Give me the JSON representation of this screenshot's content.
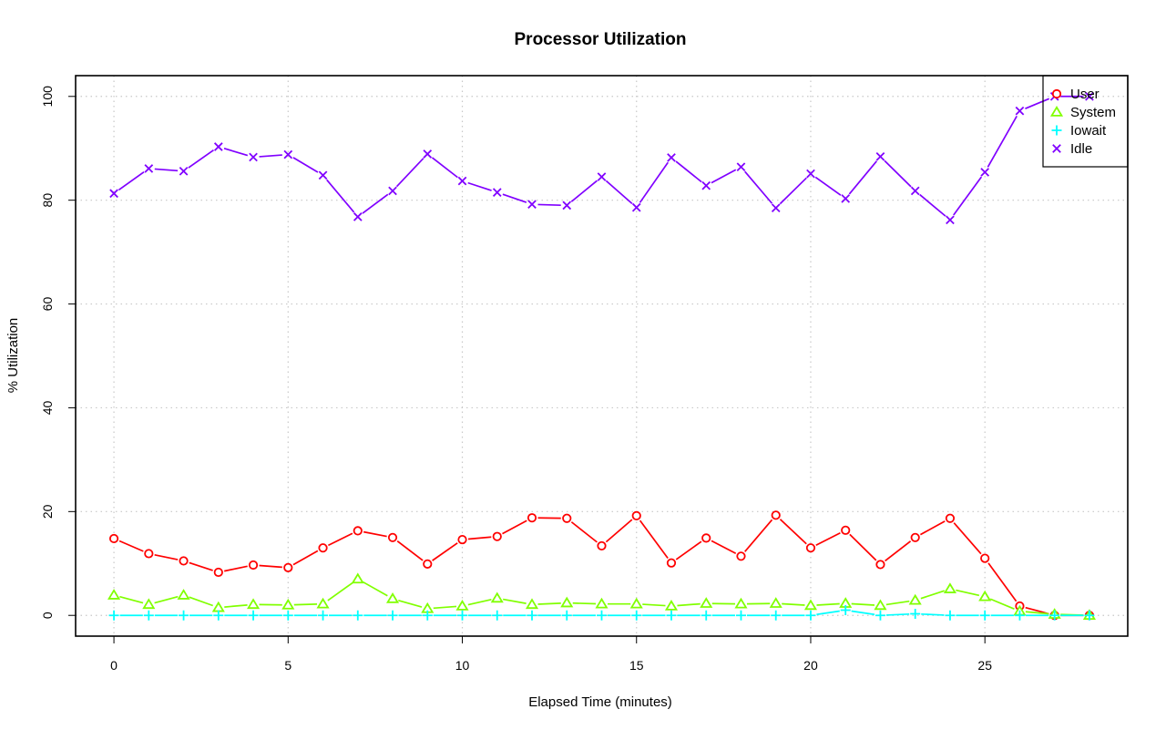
{
  "chart_data": {
    "type": "line",
    "title": "Processor Utilization",
    "xlabel": "Elapsed Time (minutes)",
    "ylabel": "% Utilization",
    "xlim": [
      -1.1,
      29.1
    ],
    "ylim": [
      -4,
      104
    ],
    "xticks": [
      0,
      5,
      10,
      15,
      20,
      25
    ],
    "yticks": [
      0,
      20,
      40,
      60,
      80,
      100
    ],
    "grid": true,
    "legend_position": "top-right",
    "x": [
      0,
      1,
      2,
      3,
      4,
      5,
      6,
      7,
      8,
      9,
      10,
      11,
      12,
      13,
      14,
      15,
      16,
      17,
      18,
      19,
      20,
      21,
      22,
      23,
      24,
      25,
      26,
      27,
      28
    ],
    "series": [
      {
        "name": "User",
        "color": "#ff0000",
        "marker": "circle",
        "values": [
          14.8,
          11.9,
          10.5,
          8.3,
          9.7,
          9.2,
          13.0,
          16.3,
          15.0,
          9.9,
          14.6,
          15.2,
          18.8,
          18.7,
          13.4,
          19.2,
          10.1,
          14.9,
          11.4,
          19.3,
          13.0,
          16.4,
          9.8,
          15.0,
          18.7,
          11.0,
          1.8,
          0.0,
          0.0
        ]
      },
      {
        "name": "System",
        "color": "#80ff00",
        "marker": "triangle",
        "values": [
          3.9,
          2.1,
          3.9,
          1.5,
          2.1,
          2.0,
          2.2,
          7.0,
          3.2,
          1.3,
          1.8,
          3.3,
          2.1,
          2.4,
          2.2,
          2.2,
          1.8,
          2.3,
          2.2,
          2.3,
          1.9,
          2.3,
          1.9,
          2.9,
          5.1,
          3.6,
          0.8,
          0.2,
          0.0
        ]
      },
      {
        "name": "Iowait",
        "color": "#00ffff",
        "marker": "plus",
        "values": [
          0,
          0,
          0,
          0,
          0,
          0,
          0,
          0,
          0,
          0,
          0,
          0,
          0,
          0,
          0,
          0,
          0,
          0,
          0,
          0,
          0,
          1.0,
          0,
          0.3,
          0,
          0,
          0,
          0,
          0
        ]
      },
      {
        "name": "Idle",
        "color": "#8000ff",
        "marker": "cross",
        "values": [
          81.3,
          86.1,
          85.6,
          90.3,
          88.3,
          88.8,
          84.8,
          76.8,
          81.8,
          88.9,
          83.7,
          81.5,
          79.2,
          79.0,
          84.5,
          78.6,
          88.2,
          82.8,
          86.4,
          78.5,
          85.1,
          80.3,
          88.4,
          81.8,
          76.2,
          85.4,
          97.2,
          100.0,
          100.0
        ]
      }
    ]
  }
}
